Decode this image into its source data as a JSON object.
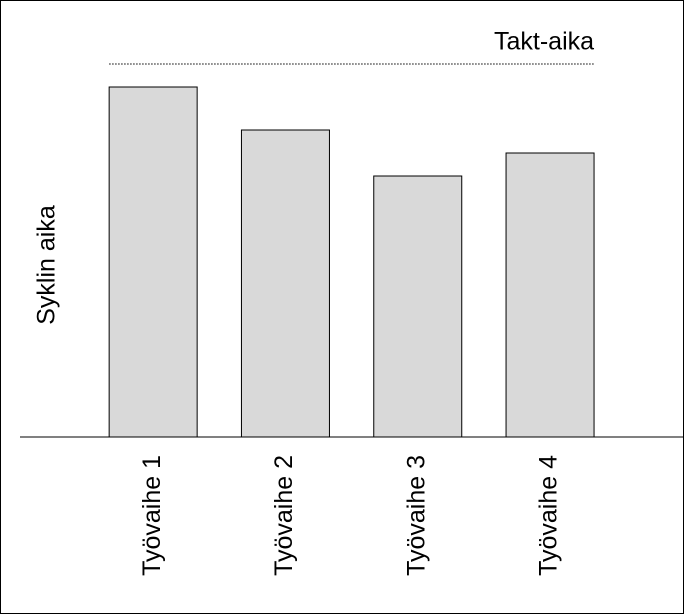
{
  "chart_data": {
    "type": "bar",
    "categories": [
      "Työvaihe 1",
      "Työvaihe 2",
      "Työvaihe 3",
      "Työvaihe 4"
    ],
    "values": [
      350,
      307,
      261,
      284
    ],
    "color": "#d9d9d9",
    "ylabel": "Syklin aika",
    "ylim": [
      0,
      432
    ],
    "reference_line": {
      "label": "Takt-aika",
      "value": 373
    }
  }
}
